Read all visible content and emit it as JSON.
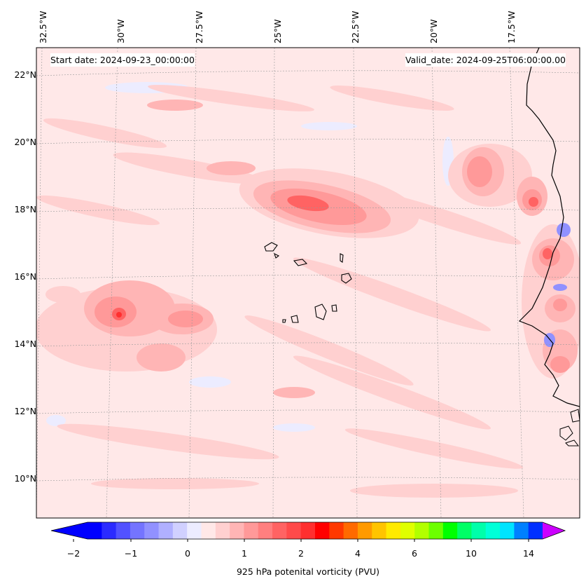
{
  "map": {
    "start_label": "Start date: 2024-09-23_00:00:00",
    "valid_label": "Valid_date: 2024-09-25T06:00:00.00",
    "lon_labels": [
      "32.5°W",
      "30°W",
      "27.5°W",
      "25°W",
      "22.5°W",
      "20°W",
      "17.5°W"
    ],
    "lat_labels": [
      "22°N",
      "20°N",
      "18°N",
      "16°N",
      "14°N",
      "12°N",
      "10°N"
    ],
    "field": "925 hPa potential vorticity"
  },
  "colorbar": {
    "title": "925 hPa potenital vorticity (PVU)",
    "ticks": [
      "−2",
      "−1",
      "0",
      "1",
      "2",
      "4",
      "6",
      "10",
      "14"
    ],
    "colors": [
      "#0000ff",
      "#2b2bff",
      "#5252ff",
      "#7474ff",
      "#9191ff",
      "#b0b0ff",
      "#d0d0ff",
      "#ececff",
      "#ffe8e8",
      "#ffd0d0",
      "#ffb5b5",
      "#ff9999",
      "#ff7f7f",
      "#ff6363",
      "#ff4a4a",
      "#ff2f2f",
      "#ff0000",
      "#ff3800",
      "#ff6a00",
      "#ff9a00",
      "#ffc400",
      "#ffea00",
      "#e0ff00",
      "#b2ff00",
      "#6cff00",
      "#00ff00",
      "#00ff66",
      "#00ffaa",
      "#00ffd8",
      "#00e4ff",
      "#0080ff",
      "#0030ff",
      "#2a00ff",
      "#8a00ff"
    ],
    "under_color": "#0000ff",
    "over_color": "#cc00ff"
  }
}
